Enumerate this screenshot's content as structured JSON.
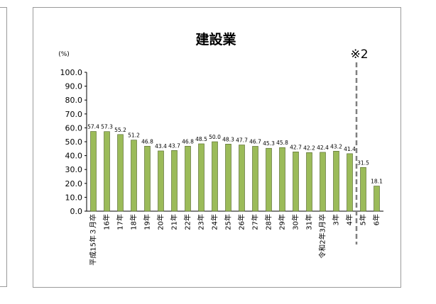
{
  "chart_data": {
    "type": "bar",
    "title": "建設業",
    "ylabel": "(%)",
    "ylim": [
      0,
      100
    ],
    "yticks": [
      "100.0",
      "90.0",
      "80.0",
      "70.0",
      "60.0",
      "50.0",
      "40.0",
      "30.0",
      "20.0",
      "10.0",
      "0.0"
    ],
    "categories": [
      "平成15年３月卒",
      "16年",
      "17年",
      "18年",
      "19年",
      "20年",
      "21年",
      "22年",
      "23年",
      "24年",
      "25年",
      "26年",
      "27年",
      "28年",
      "29年",
      "30年",
      "31年",
      "令和2年3月卒",
      "3年",
      "4年",
      "5年",
      "6年"
    ],
    "values": [
      57.4,
      57.3,
      55.2,
      51.2,
      46.8,
      43.4,
      43.7,
      46.8,
      48.5,
      50.0,
      48.3,
      47.7,
      46.7,
      45.3,
      45.8,
      42.7,
      42.2,
      42.4,
      43.2,
      41.4,
      31.5,
      18.1
    ],
    "value_labels": [
      "57.4",
      "57.3",
      "55.2",
      "51.2",
      "46.8",
      "43.4",
      "43.7",
      "46.8",
      "48.5",
      "50.0",
      "48.3",
      "47.7",
      "46.7",
      "45.3",
      "45.8",
      "42.7",
      "42.2",
      "42.4",
      "43.2",
      "41.4",
      "31.5",
      "18.1"
    ],
    "bar_color": "#9bbb59",
    "bar_stroke": "#4f6228",
    "annotation": {
      "text": "※2",
      "after_category": "4年"
    },
    "grid": false,
    "legend": "none"
  }
}
